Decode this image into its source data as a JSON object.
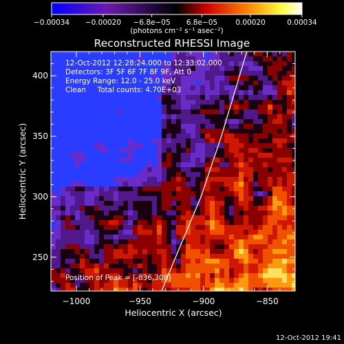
{
  "chart_data": {
    "type": "heatmap",
    "title": "Reconstructed RHESSI Image",
    "xlabel": "Heliocentric X (arcsec)",
    "ylabel": "Heliocentric Y (arcsec)",
    "xlim": [
      -1020,
      -828
    ],
    "ylim": [
      222,
      420
    ],
    "x_ticks": [
      -1000,
      -950,
      -900,
      -850
    ],
    "x_tick_labels": [
      "−1000",
      "−950",
      "−900",
      "−850"
    ],
    "y_ticks": [
      250,
      300,
      350,
      400
    ],
    "y_tick_labels": [
      "250",
      "300",
      "350",
      "400"
    ],
    "annotations": [
      "12-Oct-2012 12:28:24.000 to 12:33:02.000",
      "Detectors: 3F 5F 6F 7F 8F 9F, Att 0",
      "Energy Range: 12.0 - 25.0 keV",
      "Clean     Total counts: 4.70E+03"
    ],
    "peak_label": "Position of Peak = [-836,308]",
    "peak_position": [
      -836,
      308
    ],
    "colorbar": {
      "range": [
        -0.00034,
        0.00034
      ],
      "ticks": [
        -0.00034,
        -0.0002,
        -6.8e-05,
        6.8e-05,
        0.0002,
        0.00034
      ],
      "tick_labels": [
        "−0.00034",
        "−0.00020",
        "−6.8e−05",
        "6.8e−05",
        "0.00020",
        "0.00034"
      ],
      "unit_label": "(photons cm⁻² s⁻¹ asec⁻²)",
      "colors": [
        "#0000ff",
        "#6a1ab0",
        "#000000",
        "#d00000",
        "#ff8000",
        "#ffff40",
        "#ffffff"
      ]
    },
    "limb_curve": [
      [
        -933,
        222
      ],
      [
        -918,
        260
      ],
      [
        -902,
        300
      ],
      [
        -886,
        350
      ],
      [
        -866,
        420
      ]
    ],
    "timestamp": "12-Oct-2012 19:41"
  }
}
